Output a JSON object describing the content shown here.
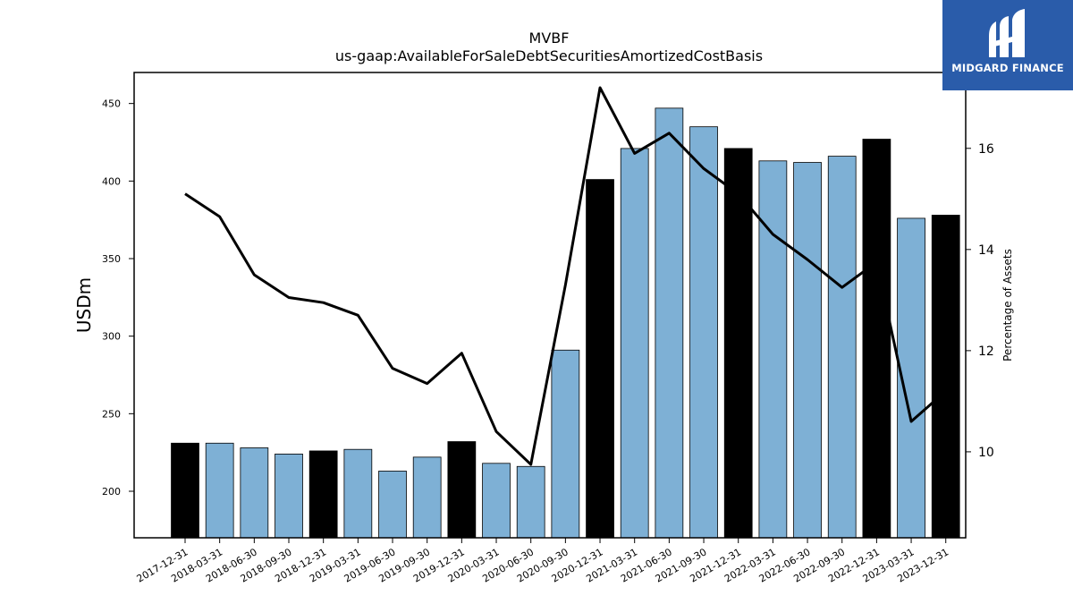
{
  "logo": {
    "text": "MIDGARD FINANCE",
    "background": "#2a5caa"
  },
  "chart_data": {
    "type": "bar",
    "title": "MVBF",
    "subtitle": "us-gaap:AvailableForSaleDebtSecuritiesAmortizedCostBasis",
    "ylabel": "USDm",
    "y2label": "Percentage of Assets",
    "ylim": [
      170,
      470
    ],
    "y2lim": [
      8.3,
      17.5
    ],
    "yticks": [
      200,
      250,
      300,
      350,
      400,
      450
    ],
    "y2ticks": [
      10,
      12,
      14,
      16
    ],
    "categories": [
      "2017-12-31",
      "2018-03-31",
      "2018-06-30",
      "2018-09-30",
      "2018-12-31",
      "2019-03-31",
      "2019-06-30",
      "2019-09-30",
      "2019-12-31",
      "2020-03-31",
      "2020-06-30",
      "2020-09-30",
      "2020-12-31",
      "2021-03-31",
      "2021-06-30",
      "2021-09-30",
      "2021-12-31",
      "2022-03-31",
      "2022-06-30",
      "2022-09-30",
      "2022-12-31",
      "2023-03-31",
      "2023-12-31"
    ],
    "series": [
      {
        "kind": "bar",
        "axis": "left",
        "values": [
          231,
          231,
          228,
          224,
          226,
          227,
          213,
          222,
          232,
          218,
          216,
          291,
          401,
          421,
          447,
          435,
          421,
          413,
          412,
          416,
          427,
          376,
          378
        ]
      },
      {
        "kind": "line",
        "axis": "right",
        "values": [
          15.1,
          14.65,
          13.5,
          13.05,
          12.95,
          12.7,
          11.65,
          11.35,
          11.95,
          10.4,
          9.75,
          13.3,
          17.2,
          15.9,
          16.3,
          15.6,
          15.1,
          14.3,
          13.8,
          13.25,
          13.75,
          10.6,
          11.2
        ]
      }
    ],
    "bar_colors": {
      "year_end": "#000000",
      "other": "#7eb0d5"
    },
    "year_end_flags": [
      true,
      false,
      false,
      false,
      true,
      false,
      false,
      false,
      true,
      false,
      false,
      false,
      true,
      false,
      false,
      false,
      true,
      false,
      false,
      false,
      true,
      false,
      true
    ],
    "line_color": "#000000",
    "grid": false,
    "legend": "none"
  }
}
